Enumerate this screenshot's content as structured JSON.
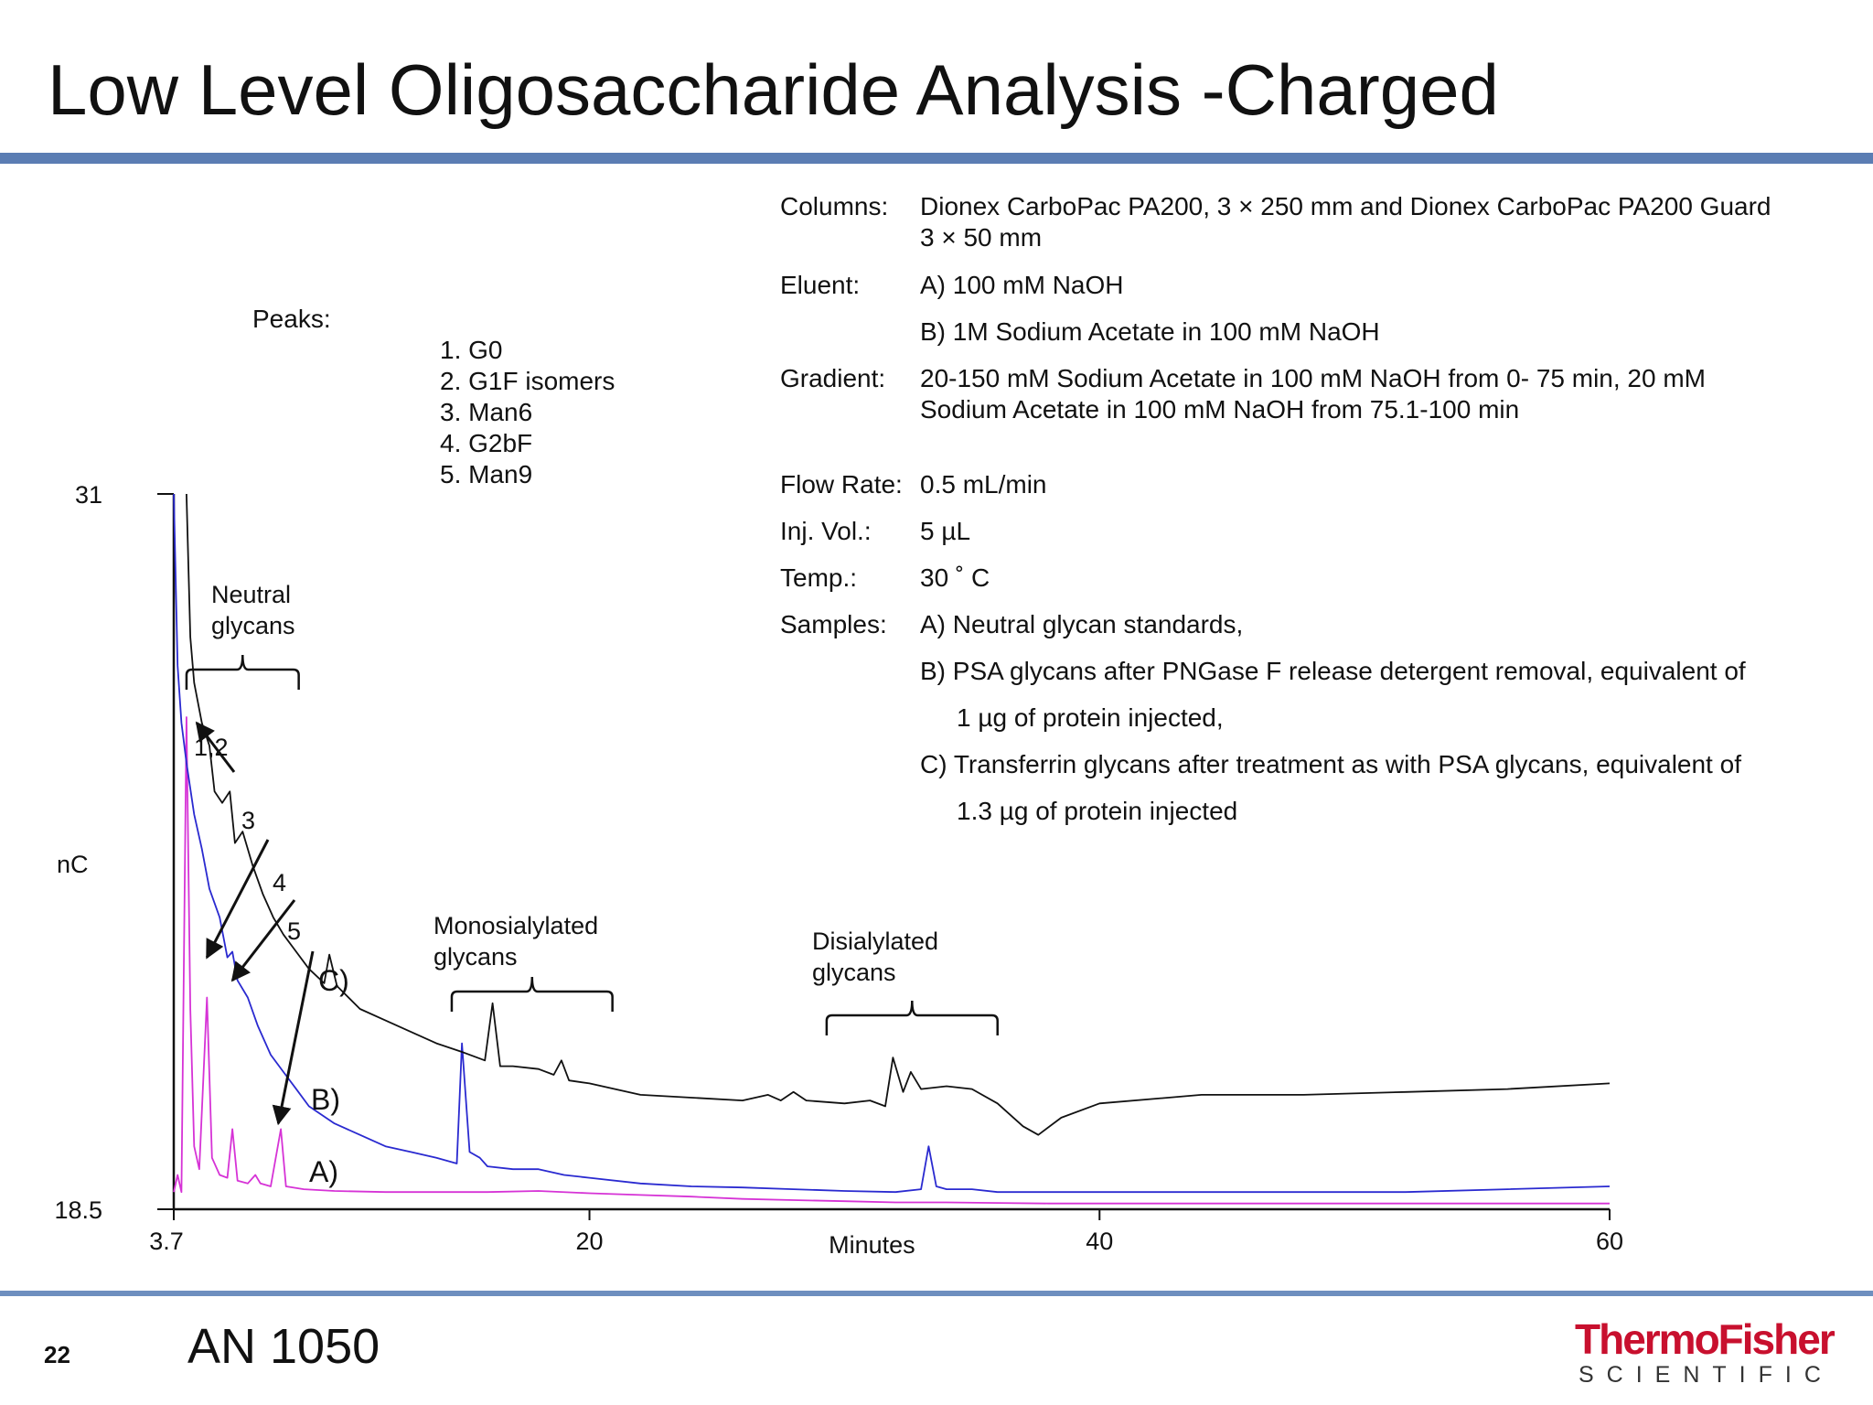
{
  "slide": {
    "title": "Low Level Oligosaccharide Analysis -Charged",
    "page_number": "22",
    "footer_label": "AN 1050",
    "logo": {
      "line1": "ThermoFisher",
      "line2": "SCIENTIFIC"
    }
  },
  "peaks": {
    "heading": "Peaks:",
    "items": [
      "1. G0",
      "2. G1F isomers",
      "3. Man6",
      "4. G2bF",
      "5. Man9"
    ]
  },
  "conditions": [
    {
      "label": "Columns:",
      "value_lines": [
        "Dionex CarboPac PA200, 3 × 250 mm and Dionex CarboPac PA200 Guard",
        "3 × 50 mm"
      ]
    },
    {
      "label": "Eluent:",
      "value_lines": [
        "A) 100 mM NaOH"
      ]
    },
    {
      "label": "",
      "value_lines": [
        "B) 1M Sodium Acetate in 100 mM NaOH"
      ]
    },
    {
      "label": "Gradient:",
      "value_lines": [
        "20-150 mM Sodium Acetate in 100 mM NaOH from 0-  75 min, 20 mM",
        "Sodium Acetate in 100 mM NaOH     from 75.1-100 min"
      ]
    },
    {
      "label": "Flow Rate:",
      "value_lines": [
        "0.5 mL/min"
      ]
    },
    {
      "label": "Inj. Vol.:",
      "value_lines": [
        "5 µL"
      ]
    },
    {
      "label": "Temp.:",
      "value_lines": [
        "30 ˚  C"
      ]
    },
    {
      "label": "Samples:",
      "value_lines": [
        "A) Neutral glycan standards,"
      ]
    },
    {
      "label": "",
      "value_lines": [
        "B) PSA glycans after PNGase F release detergent removal, equivalent of"
      ]
    },
    {
      "label": "",
      "value_lines": [
        "     1 µg of protein injected,"
      ]
    },
    {
      "label": "",
      "value_lines": [
        "C) Transferrin glycans after treatment as with PSA glycans, equivalent of"
      ]
    },
    {
      "label": "",
      "value_lines": [
        "     1.3 µg of protein injected"
      ]
    }
  ],
  "chart_data": {
    "type": "line",
    "xlabel": "Minutes",
    "ylabel": "nC",
    "xlim": [
      3.7,
      60
    ],
    "ylim": [
      18.5,
      31
    ],
    "x_ticks": [
      3.7,
      20,
      40,
      60
    ],
    "x_tick_labels": [
      "3.7",
      "20",
      "40",
      "60"
    ],
    "y_ticks": [
      18.5,
      31
    ],
    "y_tick_labels": [
      "18.5",
      "31"
    ],
    "grid": false,
    "legend": "none",
    "series": [
      {
        "name": "A)",
        "color": "#d633d6",
        "points": [
          [
            3.7,
            18.8
          ],
          [
            3.85,
            19.1
          ],
          [
            4.0,
            18.8
          ],
          [
            4.2,
            27.1
          ],
          [
            4.35,
            22.0
          ],
          [
            4.5,
            19.6
          ],
          [
            4.7,
            19.2
          ],
          [
            5.0,
            22.2
          ],
          [
            5.2,
            19.4
          ],
          [
            5.5,
            19.1
          ],
          [
            5.8,
            19.05
          ],
          [
            6.0,
            19.9
          ],
          [
            6.2,
            19.0
          ],
          [
            6.6,
            18.95
          ],
          [
            6.9,
            19.1
          ],
          [
            7.1,
            18.95
          ],
          [
            7.5,
            18.9
          ],
          [
            7.9,
            19.9
          ],
          [
            8.1,
            18.9
          ],
          [
            8.8,
            18.85
          ],
          [
            10,
            18.82
          ],
          [
            12,
            18.8
          ],
          [
            14,
            18.8
          ],
          [
            16,
            18.8
          ],
          [
            18,
            18.82
          ],
          [
            20,
            18.78
          ],
          [
            22,
            18.75
          ],
          [
            24,
            18.72
          ],
          [
            26,
            18.68
          ],
          [
            28,
            18.66
          ],
          [
            30,
            18.64
          ],
          [
            32,
            18.62
          ],
          [
            34,
            18.62
          ],
          [
            36,
            18.61
          ],
          [
            38,
            18.6
          ],
          [
            40,
            18.6
          ],
          [
            44,
            18.6
          ],
          [
            48,
            18.6
          ],
          [
            52,
            18.6
          ],
          [
            56,
            18.6
          ],
          [
            60,
            18.6
          ]
        ]
      },
      {
        "name": "B)",
        "color": "#2a2ad0",
        "points": [
          [
            3.7,
            31.0
          ],
          [
            3.85,
            28.0
          ],
          [
            4.0,
            27.0
          ],
          [
            4.2,
            26.3
          ],
          [
            4.5,
            25.4
          ],
          [
            4.8,
            24.8
          ],
          [
            5.1,
            24.1
          ],
          [
            5.5,
            23.6
          ],
          [
            5.8,
            22.9
          ],
          [
            6.0,
            23.0
          ],
          [
            6.2,
            22.5
          ],
          [
            6.6,
            22.2
          ],
          [
            7.0,
            21.7
          ],
          [
            7.5,
            21.2
          ],
          [
            8.0,
            20.9
          ],
          [
            8.5,
            20.6
          ],
          [
            9,
            20.3
          ],
          [
            10,
            20.0
          ],
          [
            11,
            19.8
          ],
          [
            12,
            19.6
          ],
          [
            13,
            19.5
          ],
          [
            14,
            19.4
          ],
          [
            14.8,
            19.3
          ],
          [
            15.0,
            21.4
          ],
          [
            15.3,
            19.5
          ],
          [
            15.7,
            19.4
          ],
          [
            16,
            19.25
          ],
          [
            17,
            19.2
          ],
          [
            18,
            19.2
          ],
          [
            19,
            19.1
          ],
          [
            20,
            19.05
          ],
          [
            22,
            18.95
          ],
          [
            24,
            18.9
          ],
          [
            26,
            18.88
          ],
          [
            28,
            18.85
          ],
          [
            30,
            18.82
          ],
          [
            32,
            18.8
          ],
          [
            33,
            18.85
          ],
          [
            33.3,
            19.6
          ],
          [
            33.6,
            18.9
          ],
          [
            34,
            18.85
          ],
          [
            35,
            18.85
          ],
          [
            36,
            18.8
          ],
          [
            38,
            18.8
          ],
          [
            40,
            18.8
          ],
          [
            44,
            18.8
          ],
          [
            48,
            18.8
          ],
          [
            52,
            18.8
          ],
          [
            56,
            18.85
          ],
          [
            60,
            18.9
          ]
        ]
      },
      {
        "name": "C)",
        "color": "#111111",
        "points": [
          [
            4.2,
            31.0
          ],
          [
            4.35,
            28.5
          ],
          [
            4.5,
            27.7
          ],
          [
            4.8,
            27.0
          ],
          [
            5.1,
            26.6
          ],
          [
            5.3,
            25.8
          ],
          [
            5.6,
            25.6
          ],
          [
            5.9,
            25.8
          ],
          [
            6.1,
            24.9
          ],
          [
            6.4,
            25.1
          ],
          [
            6.8,
            24.5
          ],
          [
            7.2,
            24.0
          ],
          [
            7.6,
            23.6
          ],
          [
            8,
            23.3
          ],
          [
            8.5,
            23.0
          ],
          [
            9.0,
            22.7
          ],
          [
            9.6,
            22.45
          ],
          [
            9.8,
            22.95
          ],
          [
            10.1,
            22.4
          ],
          [
            11,
            22.0
          ],
          [
            12,
            21.8
          ],
          [
            13,
            21.6
          ],
          [
            14,
            21.4
          ],
          [
            15,
            21.25
          ],
          [
            15.9,
            21.1
          ],
          [
            16.2,
            22.1
          ],
          [
            16.5,
            21.0
          ],
          [
            17,
            21.0
          ],
          [
            18,
            20.95
          ],
          [
            18.6,
            20.85
          ],
          [
            18.9,
            21.1
          ],
          [
            19.2,
            20.75
          ],
          [
            20,
            20.7
          ],
          [
            22,
            20.5
          ],
          [
            24,
            20.45
          ],
          [
            26,
            20.4
          ],
          [
            27,
            20.5
          ],
          [
            27.5,
            20.4
          ],
          [
            28,
            20.55
          ],
          [
            28.5,
            20.4
          ],
          [
            30,
            20.35
          ],
          [
            31,
            20.4
          ],
          [
            31.6,
            20.3
          ],
          [
            31.9,
            21.15
          ],
          [
            32.3,
            20.55
          ],
          [
            32.6,
            20.9
          ],
          [
            33,
            20.6
          ],
          [
            34,
            20.65
          ],
          [
            35,
            20.6
          ],
          [
            36,
            20.35
          ],
          [
            37,
            19.95
          ],
          [
            37.6,
            19.8
          ],
          [
            38.5,
            20.1
          ],
          [
            40,
            20.35
          ],
          [
            44,
            20.5
          ],
          [
            48,
            20.5
          ],
          [
            52,
            20.55
          ],
          [
            56,
            20.6
          ],
          [
            60,
            20.7
          ]
        ]
      }
    ],
    "annotations": [
      {
        "text": "1,2",
        "points_to": [
          4.6,
          27.0
        ]
      },
      {
        "text": "3",
        "points_to": [
          5.0,
          22.9
        ]
      },
      {
        "text": "4",
        "points_to": [
          6.0,
          22.5
        ]
      },
      {
        "text": "5",
        "points_to": [
          7.8,
          20.0
        ]
      },
      {
        "text": "Neutral glycans",
        "lines": [
          "Neutral",
          "glycans"
        ],
        "x_range": [
          4.2,
          8.6
        ]
      },
      {
        "text": "Monosialylated glycans",
        "lines": [
          "Monosialylated",
          "glycans"
        ],
        "x_range": [
          14.6,
          20.9
        ]
      },
      {
        "text": "Disialylated glycans",
        "lines": [
          "Disialylated",
          "glycans"
        ],
        "x_range": [
          29.3,
          36.0
        ]
      },
      {
        "text": "C)"
      },
      {
        "text": "B)"
      },
      {
        "text": "A)"
      }
    ]
  }
}
